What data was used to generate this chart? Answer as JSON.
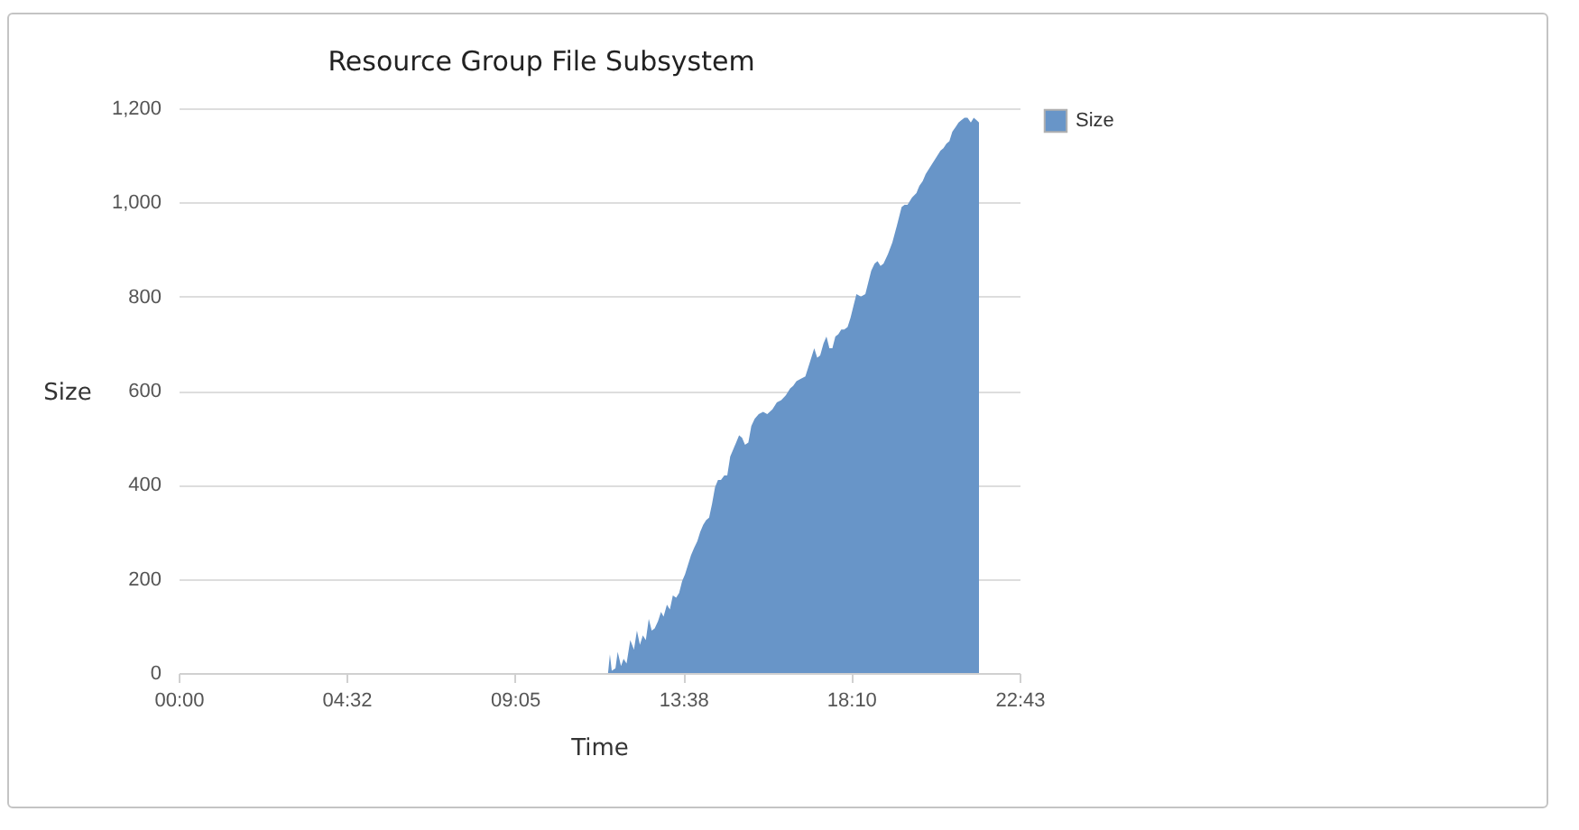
{
  "chart_data": {
    "type": "area",
    "title": "Resource Group File Subsystem",
    "xlabel": "Time",
    "ylabel": "Size",
    "x": [
      11.6,
      11.65,
      11.7,
      11.8,
      11.86,
      11.95,
      12.02,
      12.1,
      12.2,
      12.3,
      12.38,
      12.46,
      12.54,
      12.62,
      12.7,
      12.78,
      12.86,
      12.95,
      13.03,
      13.1,
      13.19,
      13.27,
      13.35,
      13.44,
      13.52,
      13.6,
      13.68,
      13.76,
      13.84,
      13.92,
      14.01,
      14.09,
      14.17,
      14.25,
      14.33,
      14.41,
      14.49,
      14.57,
      14.65,
      14.74,
      14.82,
      14.9,
      14.98,
      15.06,
      15.14,
      15.22,
      15.3,
      15.39,
      15.47,
      15.56,
      15.67,
      15.79,
      15.9,
      16.04,
      16.16,
      16.28,
      16.4,
      16.52,
      16.6,
      16.69,
      16.8,
      16.93,
      17.05,
      17.17,
      17.25,
      17.33,
      17.42,
      17.5,
      17.58,
      17.66,
      17.74,
      17.82,
      17.9,
      17.98,
      18.07,
      18.15,
      18.23,
      18.31,
      18.43,
      18.55,
      18.63,
      18.71,
      18.8,
      18.88,
      18.96,
      19.04,
      19.16,
      19.28,
      19.4,
      19.53,
      19.61,
      19.69,
      19.81,
      19.93,
      20.01,
      20.1,
      20.18,
      20.26,
      20.38,
      20.5,
      20.58,
      20.66,
      20.74,
      20.82,
      20.9,
      20.99,
      21.07,
      21.15,
      21.23,
      21.31,
      21.4,
      21.48,
      21.55,
      21.62
    ],
    "series": [
      {
        "name": "Size",
        "color": "#6895c8",
        "values": [
          0,
          40,
          5,
          10,
          45,
          15,
          30,
          20,
          70,
          50,
          90,
          60,
          80,
          70,
          115,
          90,
          95,
          110,
          130,
          120,
          145,
          135,
          165,
          160,
          170,
          195,
          210,
          230,
          250,
          265,
          280,
          300,
          315,
          325,
          330,
          360,
          395,
          410,
          410,
          420,
          420,
          460,
          475,
          490,
          505,
          500,
          485,
          490,
          525,
          540,
          550,
          555,
          550,
          560,
          575,
          580,
          590,
          605,
          610,
          620,
          625,
          630,
          660,
          690,
          670,
          675,
          700,
          715,
          690,
          690,
          715,
          720,
          730,
          730,
          735,
          755,
          780,
          805,
          800,
          805,
          830,
          855,
          870,
          875,
          865,
          870,
          890,
          915,
          950,
          990,
          995,
          995,
          1010,
          1020,
          1035,
          1045,
          1060,
          1070,
          1085,
          1100,
          1110,
          1115,
          1125,
          1130,
          1150,
          1160,
          1170,
          1175,
          1180,
          1180,
          1170,
          1180,
          1175,
          1170
        ]
      }
    ],
    "xlim": [
      0,
      22.717
    ],
    "xticks": [
      {
        "value": 0,
        "label": "00:00"
      },
      {
        "value": 4.533,
        "label": "04:32"
      },
      {
        "value": 9.083,
        "label": "09:05"
      },
      {
        "value": 13.633,
        "label": "13:38"
      },
      {
        "value": 18.167,
        "label": "18:10"
      },
      {
        "value": 22.717,
        "label": "22:43"
      }
    ],
    "ylim": [
      0,
      1200
    ],
    "yticks": [
      0,
      200,
      400,
      600,
      800,
      {
        "value": 1000,
        "label": "1,000"
      },
      {
        "value": 1200,
        "label": "1,200"
      }
    ],
    "grid": "y",
    "legend": "right"
  }
}
